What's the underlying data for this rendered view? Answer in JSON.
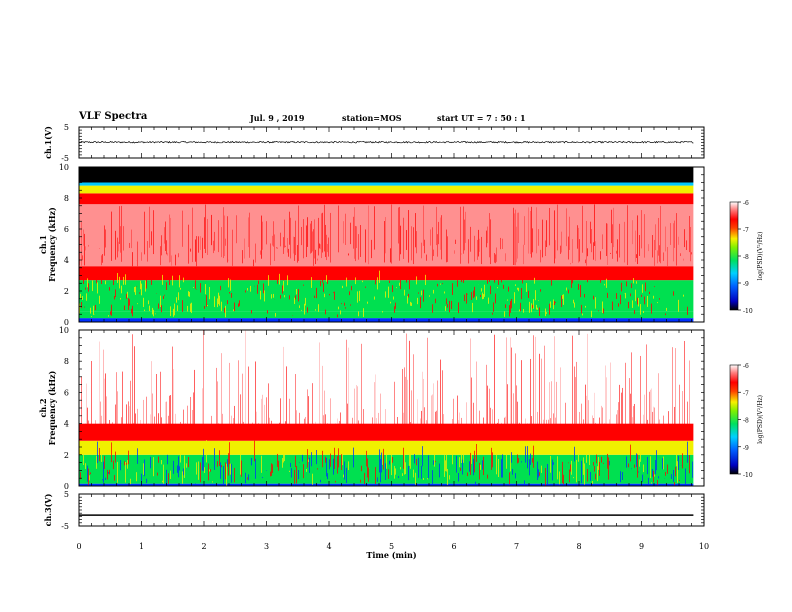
{
  "header": {
    "title": "VLF Spectra",
    "date": "Jul. 9 , 2019",
    "station": "station=MOS",
    "start_ut": "start UT =  7 : 50 : 1"
  },
  "colors": {
    "dark": "#000000",
    "blue": "#0030ff",
    "cyan": "#00c8ff",
    "green": "#00e050",
    "yellow": "#f0f000",
    "red": "#ff0000",
    "pink": "#ff9090",
    "white": "#ffffff"
  },
  "chart_data": [
    {
      "id": "ch1-waveform",
      "type": "line",
      "ylabel": "ch.1(V)",
      "ylim": [
        -5,
        5
      ],
      "yticks": [
        "5",
        "-5"
      ],
      "xlim": [
        0,
        10
      ],
      "signal_level": 0.1,
      "signal_noise_amplitude": 0.25
    },
    {
      "id": "ch1-spectrogram",
      "type": "heatmap",
      "ylabel": "Frequency (kHz)",
      "ylabel_top": "ch.1",
      "ylim": [
        0,
        10
      ],
      "yticks": [
        "0",
        "2",
        "4",
        "6",
        "8",
        "10"
      ],
      "xlim": [
        0,
        9.83
      ],
      "colorbar": {
        "label": "log(PSD)(V²/Hz)",
        "range": [
          -10,
          -6
        ],
        "ticks": [
          "-6",
          "-7",
          "-8",
          "-9",
          "-10"
        ]
      },
      "bands": [
        {
          "from": 0.0,
          "to": 0.25,
          "color": "blue"
        },
        {
          "from": 0.25,
          "to": 0.7,
          "color": "green"
        },
        {
          "from": 0.7,
          "to": 2.7,
          "color": "green"
        },
        {
          "from": 2.7,
          "to": 3.6,
          "color": "red"
        },
        {
          "from": 3.6,
          "to": 7.6,
          "color": "pink"
        },
        {
          "from": 7.6,
          "to": 8.3,
          "color": "red"
        },
        {
          "from": 8.3,
          "to": 8.8,
          "color": "yellow"
        },
        {
          "from": 8.8,
          "to": 9.0,
          "color": "cyan"
        },
        {
          "from": 9.0,
          "to": 10.0,
          "color": "dark"
        }
      ]
    },
    {
      "id": "ch2-spectrogram",
      "type": "heatmap",
      "ylabel": "Frequency (kHz)",
      "ylabel_top": "ch.2",
      "ylim": [
        0,
        10
      ],
      "yticks": [
        "0",
        "2",
        "4",
        "6",
        "8",
        "10"
      ],
      "xlim": [
        0,
        9.83
      ],
      "colorbar": {
        "label": "log(PSD)(V²/Hz)",
        "range": [
          -10,
          -6
        ],
        "ticks": [
          "-6",
          "-7",
          "-8",
          "-9",
          "-10"
        ]
      },
      "bands": [
        {
          "from": 0.0,
          "to": 0.15,
          "color": "blue"
        },
        {
          "from": 0.15,
          "to": 2.0,
          "color": "green"
        },
        {
          "from": 2.0,
          "to": 2.9,
          "color": "yellow"
        },
        {
          "from": 2.9,
          "to": 4.0,
          "color": "red"
        },
        {
          "from": 4.0,
          "to": 10.0,
          "color": "white"
        }
      ]
    },
    {
      "id": "ch3-waveform",
      "type": "line",
      "ylabel": "ch.3(V)",
      "ylim": [
        -5,
        5
      ],
      "yticks": [
        "5",
        "-5"
      ],
      "xlim": [
        0,
        10
      ],
      "signal_level": -1.6,
      "xlabel": "Time (min)",
      "xticks": [
        "0",
        "1",
        "2",
        "3",
        "4",
        "5",
        "6",
        "7",
        "8",
        "9",
        "10"
      ]
    }
  ]
}
